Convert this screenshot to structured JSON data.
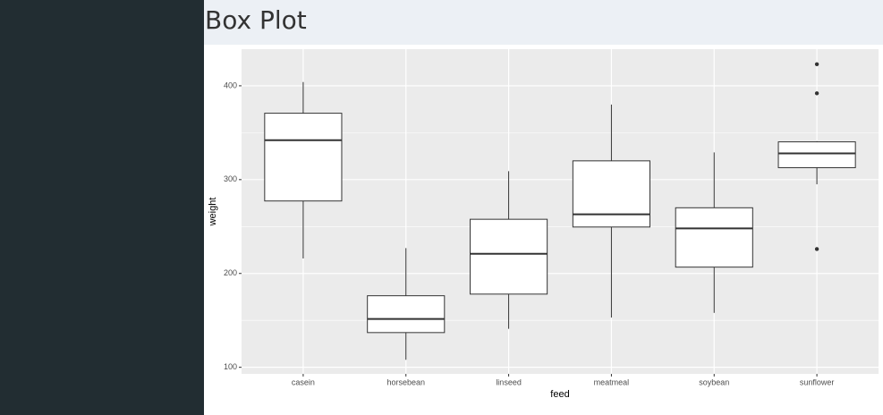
{
  "header": {
    "title": "Box Plot"
  },
  "chart_data": {
    "type": "box",
    "x_label": "feed",
    "y_label": "weight",
    "categories": [
      "casein",
      "horsebean",
      "linseed",
      "meatmeal",
      "soybean",
      "sunflower"
    ],
    "boxes": [
      {
        "min": 216,
        "q1": 277.25,
        "median": 342,
        "q3": 370.75,
        "max": 404,
        "outliers": []
      },
      {
        "min": 108,
        "q1": 137,
        "median": 151.5,
        "q3": 176.25,
        "max": 227,
        "outliers": []
      },
      {
        "min": 141,
        "q1": 178,
        "median": 221,
        "q3": 257.75,
        "max": 309,
        "outliers": []
      },
      {
        "min": 153,
        "q1": 249.5,
        "median": 263,
        "q3": 320,
        "max": 380,
        "outliers": []
      },
      {
        "min": 158,
        "q1": 206.75,
        "median": 248,
        "q3": 270,
        "max": 329,
        "outliers": []
      },
      {
        "min": 295,
        "q1": 312.75,
        "median": 328,
        "q3": 340.25,
        "max": 341,
        "outliers": [
          226,
          392,
          423
        ]
      }
    ],
    "ylim": [
      93,
      439
    ],
    "yticks": [
      100,
      200,
      300,
      400
    ],
    "minor_yticks": [
      150,
      250,
      350
    ],
    "grid": true,
    "box_color": "#ffffff",
    "line_color": "#333333",
    "panel_color": "#ebebeb"
  }
}
